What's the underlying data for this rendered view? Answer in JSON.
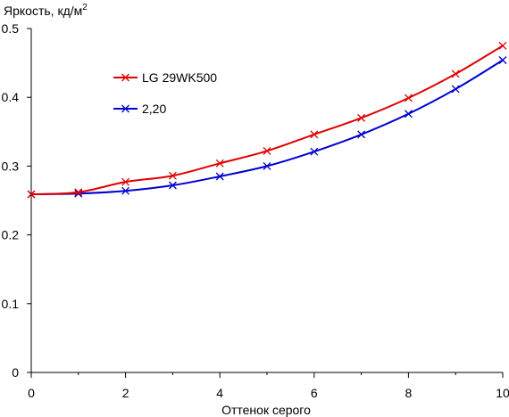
{
  "chart_data": {
    "type": "line",
    "title": "",
    "ylabel": "Яркость, кд/м",
    "ylabel_sup": "2",
    "xlabel": "Оттенок серого",
    "xlim": [
      0,
      10
    ],
    "ylim": [
      0,
      0.5
    ],
    "xticks": [
      0,
      2,
      4,
      6,
      8,
      10
    ],
    "yticks": [
      0,
      0.1,
      0.2,
      0.3,
      0.4,
      0.5
    ],
    "xtick_labels": [
      "0",
      "2",
      "4",
      "6",
      "8",
      "10"
    ],
    "ytick_labels": [
      "0",
      "0.1",
      "0.2",
      "0.3",
      "0.4",
      "0.5"
    ],
    "grid": false,
    "legend_position": "top-left",
    "x": [
      0,
      1,
      2,
      3,
      4,
      5,
      6,
      7,
      8,
      9,
      10
    ],
    "series": [
      {
        "name": "LG 29WK500",
        "color": "#e00000",
        "marker": "x",
        "values": [
          0.259,
          0.262,
          0.277,
          0.286,
          0.304,
          0.322,
          0.346,
          0.37,
          0.399,
          0.434,
          0.475
        ]
      },
      {
        "name": "2,20",
        "color": "#0000d0",
        "marker": "x",
        "values": [
          0.259,
          0.26,
          0.264,
          0.272,
          0.285,
          0.3,
          0.321,
          0.346,
          0.376,
          0.412,
          0.454
        ]
      }
    ]
  }
}
